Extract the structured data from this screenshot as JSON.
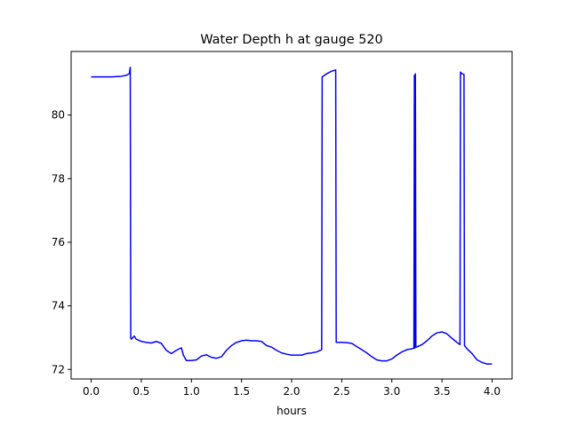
{
  "chart_data": {
    "type": "line",
    "title": "Water Depth h at gauge 520",
    "xlabel": "hours",
    "ylabel": "",
    "xlim": [
      -0.2,
      4.2
    ],
    "ylim": [
      71.7,
      82.0
    ],
    "xticks": [
      0.0,
      0.5,
      1.0,
      1.5,
      2.0,
      2.5,
      3.0,
      3.5,
      4.0
    ],
    "xtick_labels": [
      "0.0",
      "0.5",
      "1.0",
      "1.5",
      "2.0",
      "2.5",
      "3.0",
      "3.5",
      "4.0"
    ],
    "yticks": [
      72,
      74,
      76,
      78,
      80
    ],
    "ytick_labels": [
      "72",
      "74",
      "76",
      "78",
      "80"
    ],
    "grid": false,
    "series": [
      {
        "color": "#0000ff",
        "x": [
          0.0,
          0.1,
          0.2,
          0.3,
          0.35,
          0.38,
          0.39,
          0.395,
          0.4,
          0.43,
          0.45,
          0.5,
          0.55,
          0.6,
          0.65,
          0.7,
          0.75,
          0.8,
          0.85,
          0.9,
          0.92,
          0.95,
          1.0,
          1.05,
          1.1,
          1.15,
          1.2,
          1.25,
          1.3,
          1.35,
          1.4,
          1.45,
          1.5,
          1.55,
          1.6,
          1.65,
          1.7,
          1.75,
          1.8,
          1.85,
          1.9,
          1.95,
          2.0,
          2.05,
          2.1,
          2.15,
          2.2,
          2.25,
          2.3,
          2.305,
          2.35,
          2.4,
          2.44,
          2.445,
          2.5,
          2.55,
          2.6,
          2.65,
          2.7,
          2.75,
          2.8,
          2.85,
          2.9,
          2.95,
          3.0,
          3.05,
          3.1,
          3.15,
          3.2,
          3.22,
          3.225,
          3.23,
          3.235,
          3.24,
          3.245,
          3.3,
          3.35,
          3.4,
          3.45,
          3.5,
          3.55,
          3.6,
          3.65,
          3.68,
          3.685,
          3.7,
          3.72,
          3.725,
          3.75,
          3.8,
          3.85,
          3.9,
          3.95,
          4.0
        ],
        "y": [
          81.2,
          81.2,
          81.2,
          81.22,
          81.25,
          81.3,
          81.5,
          73.0,
          72.95,
          73.05,
          72.95,
          72.88,
          72.85,
          72.83,
          72.88,
          72.82,
          72.6,
          72.5,
          72.6,
          72.68,
          72.45,
          72.28,
          72.28,
          72.3,
          72.42,
          72.46,
          72.38,
          72.35,
          72.4,
          72.6,
          72.75,
          72.85,
          72.9,
          72.92,
          72.9,
          72.9,
          72.88,
          72.75,
          72.7,
          72.6,
          72.52,
          72.48,
          72.45,
          72.45,
          72.45,
          72.5,
          72.52,
          72.55,
          72.62,
          81.2,
          81.3,
          81.38,
          81.42,
          72.85,
          72.85,
          72.84,
          72.82,
          72.72,
          72.62,
          72.52,
          72.4,
          72.3,
          72.27,
          72.27,
          72.33,
          72.45,
          72.55,
          72.62,
          72.65,
          72.67,
          81.25,
          72.67,
          81.3,
          72.7,
          72.7,
          72.78,
          72.9,
          73.05,
          73.15,
          73.18,
          73.12,
          72.98,
          72.85,
          72.78,
          81.35,
          81.3,
          81.28,
          72.75,
          72.65,
          72.5,
          72.3,
          72.22,
          72.17,
          72.17
        ]
      }
    ]
  }
}
